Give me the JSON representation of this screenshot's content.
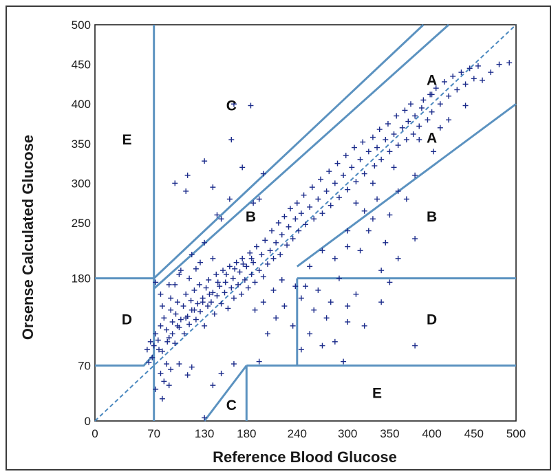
{
  "chart_data": {
    "type": "scatter",
    "title": "",
    "xlabel": "Reference Blood Glucose",
    "ylabel": "Orsense Calculated Glucose",
    "xlim": [
      0,
      500
    ],
    "ylim": [
      0,
      500
    ],
    "x_ticks": [
      "0",
      "70",
      "130",
      "180",
      "240",
      "300",
      "350",
      "400",
      "450",
      "500"
    ],
    "y_ticks": [
      "0",
      "70",
      "180",
      "250",
      "300",
      "350",
      "400",
      "450",
      "500"
    ],
    "x_tick_values": [
      0,
      70,
      130,
      180,
      240,
      300,
      350,
      400,
      450,
      500
    ],
    "y_tick_values": [
      0,
      70,
      180,
      250,
      300,
      350,
      400,
      450,
      500
    ],
    "grid": false,
    "zones": [
      {
        "label": "A",
        "x": 400,
        "y": 430
      },
      {
        "label": "A",
        "x": 400,
        "y": 357
      },
      {
        "label": "B",
        "x": 185,
        "y": 258
      },
      {
        "label": "B",
        "x": 400,
        "y": 258
      },
      {
        "label": "C",
        "x": 162,
        "y": 398
      },
      {
        "label": "C",
        "x": 162,
        "y": 20
      },
      {
        "label": "D",
        "x": 38,
        "y": 128
      },
      {
        "label": "D",
        "x": 400,
        "y": 128
      },
      {
        "label": "E",
        "x": 38,
        "y": 355
      },
      {
        "label": "E",
        "x": 335,
        "y": 35
      }
    ],
    "zone_boundaries": [
      {
        "points": [
          [
            70,
            0
          ],
          [
            70,
            500
          ]
        ]
      },
      {
        "points": [
          [
            0,
            70
          ],
          [
            58,
            70
          ],
          [
            70,
            84
          ]
        ]
      },
      {
        "points": [
          [
            0,
            180
          ],
          [
            70,
            180
          ]
        ]
      },
      {
        "points": [
          [
            70,
            180
          ],
          [
            390,
            500
          ]
        ]
      },
      {
        "points": [
          [
            70,
            167
          ],
          [
            420,
            500
          ]
        ]
      },
      {
        "points": [
          [
            240,
            195
          ],
          [
            500,
            400
          ]
        ]
      },
      {
        "points": [
          [
            240,
            180
          ],
          [
            500,
            180
          ]
        ]
      },
      {
        "points": [
          [
            240,
            70
          ],
          [
            240,
            180
          ]
        ]
      },
      {
        "points": [
          [
            180,
            70
          ],
          [
            500,
            70
          ]
        ]
      },
      {
        "points": [
          [
            130,
            0
          ],
          [
            180,
            70
          ]
        ]
      },
      {
        "points": [
          [
            180,
            0
          ],
          [
            180,
            70
          ]
        ]
      }
    ],
    "identity_line": {
      "points": [
        [
          0,
          0
        ],
        [
          500,
          500
        ]
      ],
      "style": "dashed"
    },
    "series": [
      {
        "marker": "+",
        "points": [
          [
            62,
            90
          ],
          [
            66,
            100
          ],
          [
            70,
            95
          ],
          [
            72,
            110
          ],
          [
            75,
            102
          ],
          [
            78,
            120
          ],
          [
            80,
            88
          ],
          [
            82,
            130
          ],
          [
            85,
            115
          ],
          [
            88,
            105
          ],
          [
            90,
            140
          ],
          [
            92,
            125
          ],
          [
            95,
            98
          ],
          [
            96,
            135
          ],
          [
            98,
            150
          ],
          [
            100,
            118
          ],
          [
            102,
            128
          ],
          [
            105,
            145
          ],
          [
            106,
            110
          ],
          [
            108,
            160
          ],
          [
            110,
            132
          ],
          [
            112,
            122
          ],
          [
            114,
            152
          ],
          [
            115,
            140
          ],
          [
            118,
            165
          ],
          [
            120,
            128
          ],
          [
            122,
            148
          ],
          [
            124,
            172
          ],
          [
            125,
            138
          ],
          [
            128,
            155
          ],
          [
            130,
            120
          ],
          [
            132,
            168
          ],
          [
            134,
            145
          ],
          [
            135,
            178
          ],
          [
            138,
            150
          ],
          [
            140,
            162
          ],
          [
            142,
            135
          ],
          [
            144,
            185
          ],
          [
            145,
            158
          ],
          [
            148,
            170
          ],
          [
            150,
            148
          ],
          [
            152,
            190
          ],
          [
            154,
            162
          ],
          [
            155,
            175
          ],
          [
            158,
            142
          ],
          [
            160,
            195
          ],
          [
            162,
            168
          ],
          [
            164,
            180
          ],
          [
            165,
            155
          ],
          [
            168,
            200
          ],
          [
            170,
            172
          ],
          [
            172,
            188
          ],
          [
            174,
            160
          ],
          [
            175,
            205
          ],
          [
            178,
            178
          ],
          [
            180,
            195
          ],
          [
            182,
            168
          ],
          [
            184,
            212
          ],
          [
            186,
            185
          ],
          [
            188,
            200
          ],
          [
            190,
            175
          ],
          [
            192,
            220
          ],
          [
            195,
            190
          ],
          [
            198,
            210
          ],
          [
            200,
            182
          ],
          [
            202,
            228
          ],
          [
            205,
            198
          ],
          [
            208,
            215
          ],
          [
            210,
            240
          ],
          [
            212,
            205
          ],
          [
            215,
            225
          ],
          [
            218,
            250
          ],
          [
            220,
            210
          ],
          [
            222,
            235
          ],
          [
            225,
            258
          ],
          [
            228,
            222
          ],
          [
            230,
            245
          ],
          [
            232,
            268
          ],
          [
            235,
            230
          ],
          [
            238,
            255
          ],
          [
            240,
            275
          ],
          [
            242,
            240
          ],
          [
            245,
            262
          ],
          [
            248,
            285
          ],
          [
            250,
            248
          ],
          [
            255,
            270
          ],
          [
            258,
            295
          ],
          [
            260,
            255
          ],
          [
            265,
            280
          ],
          [
            268,
            305
          ],
          [
            270,
            262
          ],
          [
            275,
            290
          ],
          [
            278,
            315
          ],
          [
            280,
            272
          ],
          [
            285,
            300
          ],
          [
            288,
            325
          ],
          [
            290,
            282
          ],
          [
            295,
            310
          ],
          [
            298,
            335
          ],
          [
            300,
            292
          ],
          [
            305,
            320
          ],
          [
            308,
            345
          ],
          [
            310,
            302
          ],
          [
            315,
            330
          ],
          [
            318,
            352
          ],
          [
            320,
            312
          ],
          [
            325,
            340
          ],
          [
            330,
            358
          ],
          [
            332,
            322
          ],
          [
            335,
            345
          ],
          [
            338,
            368
          ],
          [
            340,
            330
          ],
          [
            345,
            355
          ],
          [
            348,
            375
          ],
          [
            350,
            340
          ],
          [
            355,
            362
          ],
          [
            358,
            385
          ],
          [
            360,
            348
          ],
          [
            365,
            370
          ],
          [
            368,
            392
          ],
          [
            370,
            355
          ],
          [
            372,
            378
          ],
          [
            375,
            400
          ],
          [
            378,
            362
          ],
          [
            380,
            385
          ],
          [
            385,
            372
          ],
          [
            388,
            395
          ],
          [
            390,
            405
          ],
          [
            395,
            380
          ],
          [
            398,
            412
          ],
          [
            400,
            390
          ],
          [
            405,
            420
          ],
          [
            410,
            400
          ],
          [
            415,
            428
          ],
          [
            420,
            410
          ],
          [
            425,
            435
          ],
          [
            430,
            418
          ],
          [
            435,
            440
          ],
          [
            440,
            425
          ],
          [
            445,
            445
          ],
          [
            450,
            432
          ],
          [
            455,
            448
          ],
          [
            400,
            412
          ],
          [
            402,
            340
          ],
          [
            95,
            300
          ],
          [
            110,
            310
          ],
          [
            108,
            290
          ],
          [
            130,
            328
          ],
          [
            140,
            295
          ],
          [
            165,
            400
          ],
          [
            185,
            398
          ],
          [
            162,
            355
          ],
          [
            175,
            320
          ],
          [
            188,
            275
          ],
          [
            195,
            280
          ],
          [
            200,
            312
          ],
          [
            160,
            280
          ],
          [
            145,
            260
          ],
          [
            150,
            255
          ],
          [
            80,
            145
          ],
          [
            78,
            160
          ],
          [
            72,
            175
          ],
          [
            88,
            172
          ],
          [
            90,
            155
          ],
          [
            100,
            185
          ],
          [
            102,
            190
          ],
          [
            115,
            210
          ],
          [
            130,
            225
          ],
          [
            125,
            200
          ],
          [
            112,
            180
          ],
          [
            95,
            172
          ],
          [
            120,
            192
          ],
          [
            140,
            205
          ],
          [
            85,
            72
          ],
          [
            78,
            60
          ],
          [
            82,
            50
          ],
          [
            88,
            45
          ],
          [
            72,
            40
          ],
          [
            80,
            28
          ],
          [
            90,
            65
          ],
          [
            100,
            72
          ],
          [
            110,
            58
          ],
          [
            115,
            68
          ],
          [
            140,
            45
          ],
          [
            150,
            60
          ],
          [
            165,
            72
          ],
          [
            130,
            4
          ],
          [
            195,
            75
          ],
          [
            245,
            90
          ],
          [
            255,
            110
          ],
          [
            260,
            140
          ],
          [
            270,
            95
          ],
          [
            275,
            130
          ],
          [
            280,
            150
          ],
          [
            285,
            100
          ],
          [
            300,
            125
          ],
          [
            300,
            145
          ],
          [
            310,
            160
          ],
          [
            320,
            120
          ],
          [
            340,
            150
          ],
          [
            350,
            175
          ],
          [
            380,
            95
          ],
          [
            295,
            75
          ],
          [
            250,
            170
          ],
          [
            265,
            165
          ],
          [
            290,
            180
          ],
          [
            205,
            110
          ],
          [
            215,
            130
          ],
          [
            225,
            145
          ],
          [
            235,
            120
          ],
          [
            245,
            155
          ],
          [
            212,
            165
          ],
          [
            190,
            140
          ],
          [
            200,
            150
          ],
          [
            222,
            178
          ],
          [
            238,
            170
          ],
          [
            255,
            195
          ],
          [
            270,
            215
          ],
          [
            285,
            205
          ],
          [
            300,
            240
          ],
          [
            315,
            215
          ],
          [
            330,
            255
          ],
          [
            345,
            225
          ],
          [
            360,
            205
          ],
          [
            380,
            230
          ],
          [
            300,
            220
          ],
          [
            325,
            240
          ],
          [
            350,
            260
          ],
          [
            370,
            280
          ],
          [
            340,
            190
          ],
          [
            385,
            355
          ],
          [
            410,
            370
          ],
          [
            420,
            380
          ],
          [
            440,
            398
          ],
          [
            460,
            430
          ],
          [
            470,
            440
          ],
          [
            480,
            450
          ],
          [
            492,
            452
          ],
          [
            380,
            310
          ],
          [
            355,
            320
          ],
          [
            360,
            290
          ],
          [
            330,
            300
          ],
          [
            335,
            280
          ],
          [
            310,
            275
          ],
          [
            320,
            265
          ],
          [
            128,
            150
          ],
          [
            136,
            160
          ],
          [
            146,
            175
          ],
          [
            156,
            185
          ],
          [
            166,
            192
          ],
          [
            176,
            198
          ],
          [
            186,
            205
          ],
          [
            118,
            140
          ],
          [
            108,
            130
          ],
          [
            98,
            120
          ],
          [
            92,
            110
          ],
          [
            86,
            100
          ],
          [
            76,
            90
          ],
          [
            68,
            80
          ],
          [
            64,
            74
          ]
        ]
      }
    ]
  }
}
